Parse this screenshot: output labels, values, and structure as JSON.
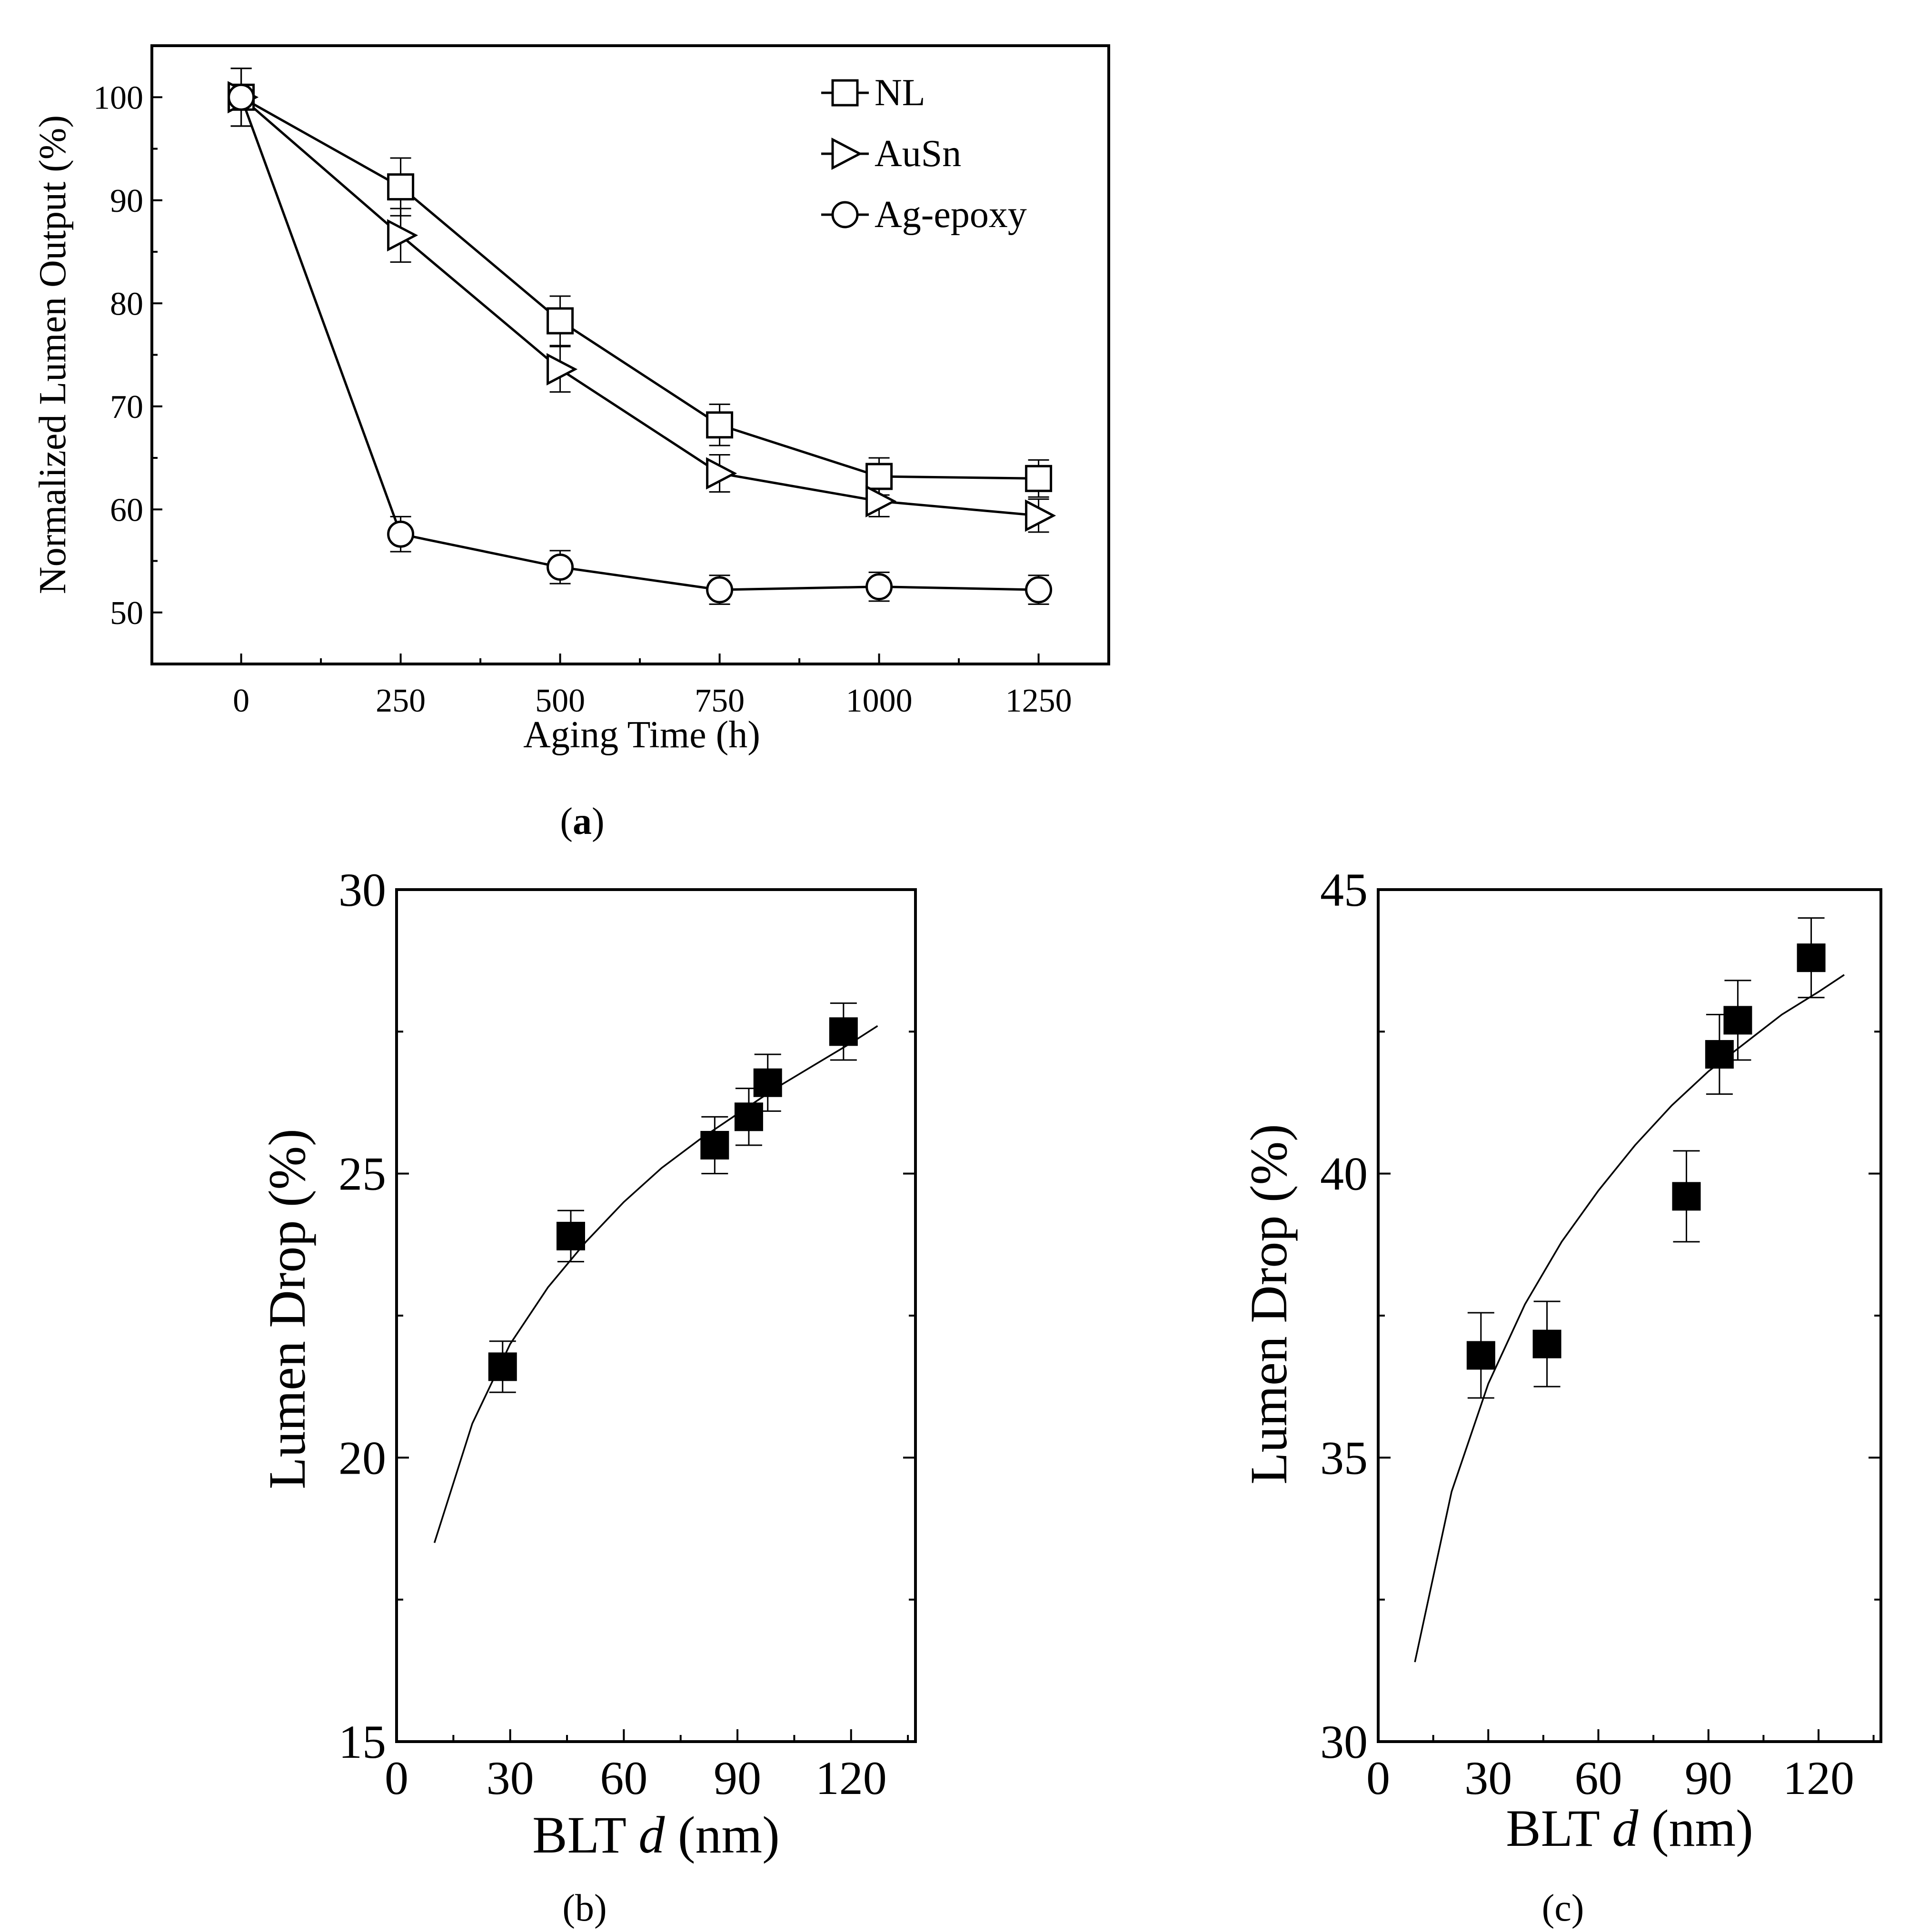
{
  "chart_data": [
    {
      "id": "a",
      "type": "line",
      "caption": {
        "open": "(",
        "letter": "a",
        "close": ")"
      },
      "xlabel": "Aging Time (h)",
      "ylabel": "Normalized Lumen Output (%)",
      "xlim": [
        -140,
        1360
      ],
      "ylim": [
        45,
        105
      ],
      "xticks": [
        0,
        250,
        500,
        750,
        1000,
        1250
      ],
      "yticks": [
        50,
        60,
        70,
        80,
        90,
        100
      ],
      "x": [
        0,
        250,
        500,
        750,
        1000,
        1250
      ],
      "series": [
        {
          "name": "NL",
          "marker": "square",
          "values": [
            100,
            91.3,
            78.3,
            68.2,
            63.2,
            63.0
          ],
          "errors": [
            2.8,
            2.8,
            2.4,
            2.0,
            1.8,
            1.8
          ]
        },
        {
          "name": "AuSn",
          "marker": "triangle-right",
          "values": [
            100,
            86.6,
            73.6,
            63.5,
            60.8,
            59.4
          ],
          "errors": [
            2.8,
            2.6,
            2.2,
            1.8,
            1.5,
            1.6
          ]
        },
        {
          "name": "Ag-epoxy",
          "marker": "circle",
          "values": [
            100,
            57.6,
            54.4,
            52.2,
            52.5,
            52.2
          ],
          "errors": [
            2.8,
            1.7,
            1.6,
            1.4,
            1.4,
            1.4
          ]
        }
      ]
    },
    {
      "id": "b",
      "type": "scatter",
      "caption": "(b)",
      "xlabel_pre": "BLT ",
      "xlabel_var": "d",
      "xlabel_post": " (nm)",
      "ylabel": "Lumen Drop (%)",
      "xlim": [
        0,
        137
      ],
      "ylim": [
        15,
        30
      ],
      "xticks": [
        0,
        30,
        60,
        90,
        120
      ],
      "yticks": [
        15,
        20,
        25,
        30
      ],
      "points": [
        {
          "x": 28,
          "y": 21.6,
          "err": 0.45
        },
        {
          "x": 46,
          "y": 23.9,
          "err": 0.45
        },
        {
          "x": 84,
          "y": 25.5,
          "err": 0.5
        },
        {
          "x": 93,
          "y": 26.0,
          "err": 0.5
        },
        {
          "x": 98,
          "y": 26.6,
          "err": 0.5
        },
        {
          "x": 118,
          "y": 27.5,
          "err": 0.5
        }
      ],
      "fit": {
        "x": [
          10,
          20,
          30,
          40,
          50,
          60,
          70,
          80,
          90,
          100,
          110,
          120,
          127
        ],
        "y": [
          18.5,
          20.6,
          22.0,
          23.0,
          23.8,
          24.5,
          25.1,
          25.6,
          26.05,
          26.5,
          26.9,
          27.3,
          27.6
        ]
      }
    },
    {
      "id": "c",
      "type": "scatter",
      "caption": "(c)",
      "xlabel_pre": "BLT ",
      "xlabel_var": "d",
      "xlabel_post": " (nm)",
      "ylabel": "Lumen Drop (%)",
      "xlim": [
        0,
        137
      ],
      "ylim": [
        30,
        45
      ],
      "xticks": [
        0,
        30,
        60,
        90,
        120
      ],
      "yticks": [
        30,
        35,
        40,
        45
      ],
      "points": [
        {
          "x": 28,
          "y": 36.8,
          "err": 0.75
        },
        {
          "x": 46,
          "y": 37.0,
          "err": 0.75
        },
        {
          "x": 84,
          "y": 39.6,
          "err": 0.8
        },
        {
          "x": 93,
          "y": 42.1,
          "err": 0.7
        },
        {
          "x": 98,
          "y": 42.7,
          "err": 0.7
        },
        {
          "x": 118,
          "y": 43.8,
          "err": 0.7
        }
      ],
      "fit": {
        "x": [
          10,
          20,
          30,
          40,
          50,
          60,
          70,
          80,
          90,
          100,
          110,
          120,
          127
        ],
        "y": [
          31.4,
          34.4,
          36.3,
          37.7,
          38.8,
          39.7,
          40.5,
          41.2,
          41.8,
          42.3,
          42.8,
          43.2,
          43.5
        ]
      }
    }
  ]
}
